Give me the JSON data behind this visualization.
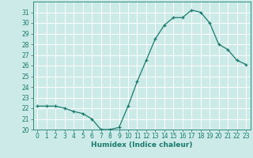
{
  "x": [
    0,
    1,
    2,
    3,
    4,
    5,
    6,
    7,
    8,
    9,
    10,
    11,
    12,
    13,
    14,
    15,
    16,
    17,
    18,
    19,
    20,
    21,
    22,
    23
  ],
  "y": [
    22.2,
    22.2,
    22.2,
    22.0,
    21.7,
    21.5,
    21.0,
    20.0,
    20.0,
    20.2,
    22.2,
    24.5,
    26.5,
    28.5,
    29.8,
    30.5,
    30.5,
    31.2,
    31.0,
    30.0,
    28.0,
    27.5,
    26.5,
    26.1
  ],
  "line_color": "#1a7a6e",
  "marker": "+",
  "marker_size": 3,
  "bg_color": "#cceae7",
  "grid_color": "#ffffff",
  "xlabel": "Humidex (Indice chaleur)",
  "xlim": [
    -0.5,
    23.5
  ],
  "ylim": [
    20,
    32
  ],
  "yticks": [
    20,
    21,
    22,
    23,
    24,
    25,
    26,
    27,
    28,
    29,
    30,
    31
  ],
  "xticks": [
    0,
    1,
    2,
    3,
    4,
    5,
    6,
    7,
    8,
    9,
    10,
    11,
    12,
    13,
    14,
    15,
    16,
    17,
    18,
    19,
    20,
    21,
    22,
    23
  ],
  "xlabel_fontsize": 6.5,
  "tick_fontsize": 5.5
}
